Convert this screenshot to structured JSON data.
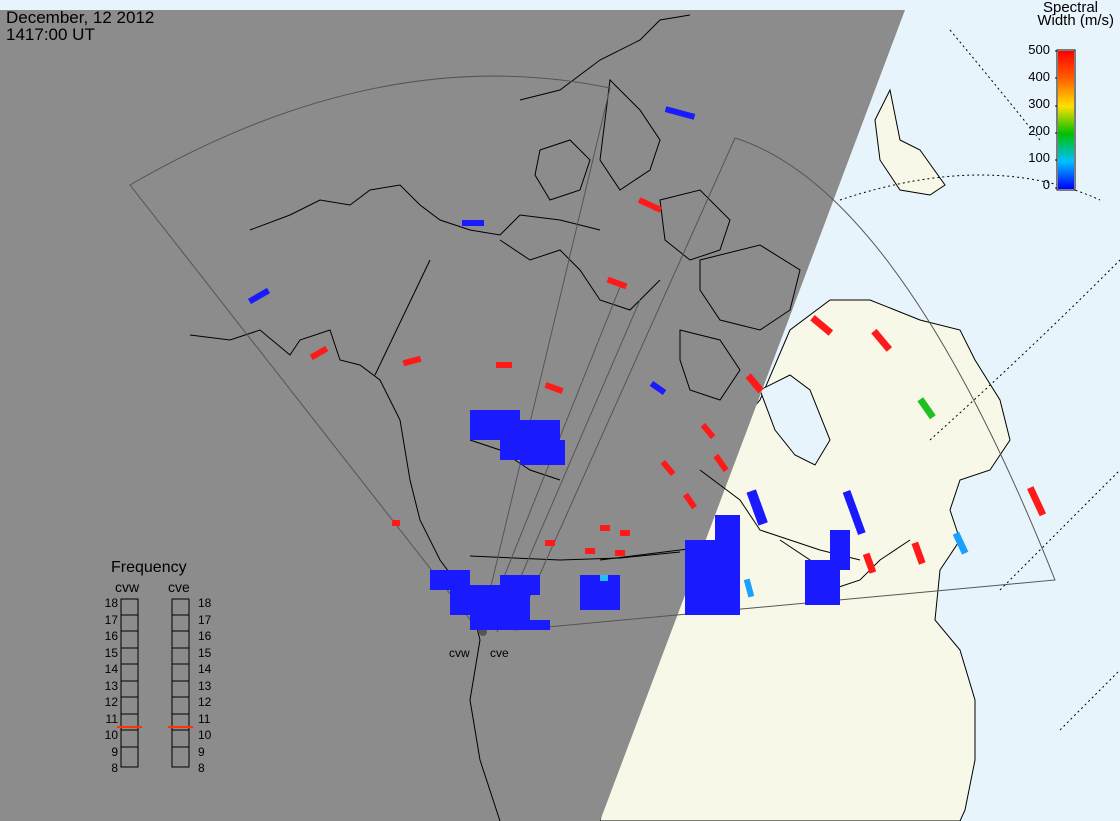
{
  "header": {
    "date": "December, 12 2012",
    "time": "1417:00 UT"
  },
  "colorbar": {
    "title_line1": "Spectral",
    "title_line2": "Width (m/s)",
    "ticks": [
      "500",
      "400",
      "300",
      "200",
      "100",
      "0"
    ],
    "colors": [
      "#0000ff",
      "#0080ff",
      "#00e0e0",
      "#00c000",
      "#c0e000",
      "#ffc000",
      "#ff6000",
      "#ff0000"
    ]
  },
  "radars": {
    "west": "cvw",
    "east": "cve"
  },
  "frequency": {
    "title": "Frequency",
    "col_west": "cvw",
    "col_east": "cve",
    "levels": [
      "18",
      "17",
      "16",
      "15",
      "14",
      "13",
      "12",
      "11",
      "10",
      "9",
      "8"
    ],
    "marker_west_mhz": 10.6,
    "marker_east_mhz": 10.6
  },
  "map_colors": {
    "night": "#8c8c8c",
    "ocean_day": "#e8f4fc",
    "land_day": "#f8f8e8"
  }
}
